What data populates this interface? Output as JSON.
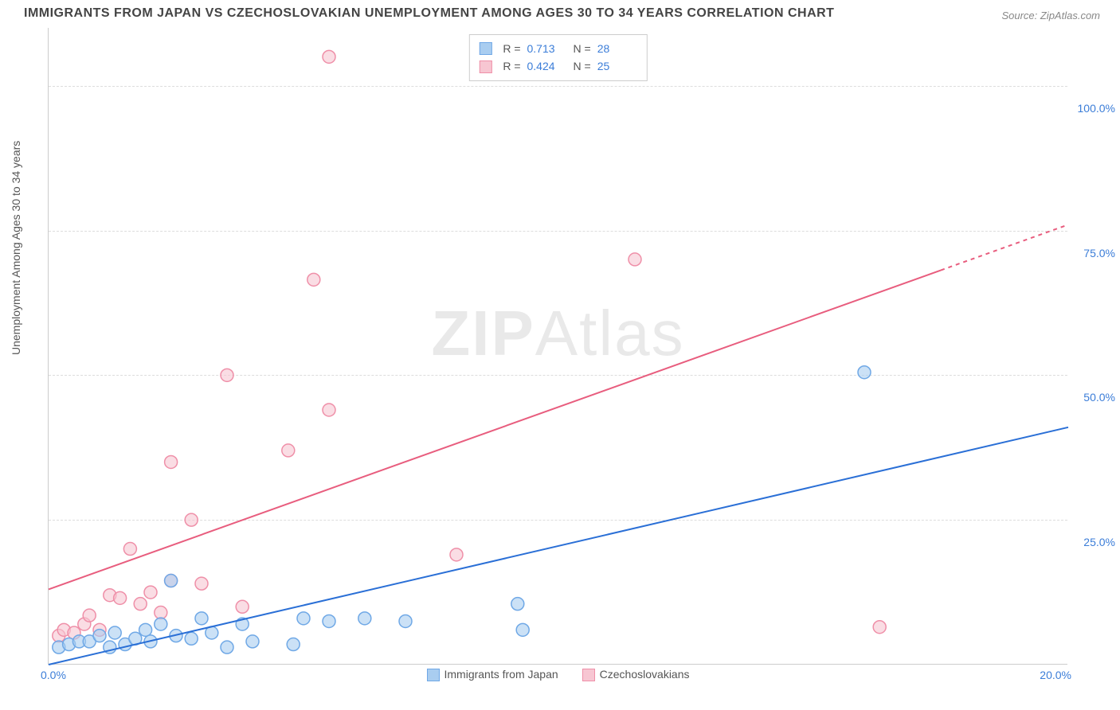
{
  "title": "IMMIGRANTS FROM JAPAN VS CZECHOSLOVAKIAN UNEMPLOYMENT AMONG AGES 30 TO 34 YEARS CORRELATION CHART",
  "source": "Source: ZipAtlas.com",
  "ylabel": "Unemployment Among Ages 30 to 34 years",
  "watermark_a": "ZIP",
  "watermark_b": "Atlas",
  "chart": {
    "type": "scatter",
    "xlim": [
      0,
      20
    ],
    "ylim": [
      0,
      110
    ],
    "xtick_labels": [
      "0.0%",
      "20.0%"
    ],
    "ytick_positions": [
      25,
      50,
      75,
      100
    ],
    "ytick_labels": [
      "25.0%",
      "50.0%",
      "75.0%",
      "100.0%"
    ],
    "background_color": "#ffffff",
    "grid_color": "#dddddd",
    "marker_radius": 8,
    "marker_stroke_width": 1.5,
    "line_width": 2,
    "series": [
      {
        "name": "Immigrants from Japan",
        "color_fill": "#a9cdf0",
        "color_stroke": "#6fa8e6",
        "line_color": "#2a6fd6",
        "R": "0.713",
        "N": "28",
        "points": [
          [
            0.2,
            3.0
          ],
          [
            0.4,
            3.5
          ],
          [
            0.6,
            4.0
          ],
          [
            0.8,
            4.0
          ],
          [
            1.0,
            5.0
          ],
          [
            1.2,
            3.0
          ],
          [
            1.3,
            5.5
          ],
          [
            1.5,
            3.5
          ],
          [
            1.7,
            4.5
          ],
          [
            1.9,
            6.0
          ],
          [
            2.0,
            4.0
          ],
          [
            2.2,
            7.0
          ],
          [
            2.4,
            14.5
          ],
          [
            2.5,
            5.0
          ],
          [
            2.8,
            4.5
          ],
          [
            3.0,
            8.0
          ],
          [
            3.2,
            5.5
          ],
          [
            3.5,
            3.0
          ],
          [
            3.8,
            7.0
          ],
          [
            4.0,
            4.0
          ],
          [
            4.8,
            3.5
          ],
          [
            5.0,
            8.0
          ],
          [
            5.5,
            7.5
          ],
          [
            6.2,
            8.0
          ],
          [
            7.0,
            7.5
          ],
          [
            9.2,
            10.5
          ],
          [
            9.3,
            6.0
          ],
          [
            16.0,
            50.5
          ]
        ],
        "trend": {
          "x1": 0,
          "y1": 0,
          "x2": 20,
          "y2": 41,
          "dash_from_x": null
        }
      },
      {
        "name": "Czechoslovakians",
        "color_fill": "#f7c6d2",
        "color_stroke": "#ef8fa8",
        "line_color": "#e85d7e",
        "R": "0.424",
        "N": "25",
        "points": [
          [
            0.2,
            5.0
          ],
          [
            0.3,
            6.0
          ],
          [
            0.5,
            5.5
          ],
          [
            0.7,
            7.0
          ],
          [
            0.8,
            8.5
          ],
          [
            1.0,
            6.0
          ],
          [
            1.2,
            12.0
          ],
          [
            1.4,
            11.5
          ],
          [
            1.6,
            20.0
          ],
          [
            1.8,
            10.5
          ],
          [
            2.0,
            12.5
          ],
          [
            2.2,
            9.0
          ],
          [
            2.4,
            14.5
          ],
          [
            2.4,
            35.0
          ],
          [
            2.8,
            25.0
          ],
          [
            3.0,
            14.0
          ],
          [
            3.5,
            50.0
          ],
          [
            3.8,
            10.0
          ],
          [
            4.7,
            37.0
          ],
          [
            5.2,
            66.5
          ],
          [
            5.5,
            44.0
          ],
          [
            5.5,
            105.0
          ],
          [
            8.0,
            19.0
          ],
          [
            11.5,
            70.0
          ],
          [
            16.3,
            6.5
          ]
        ],
        "trend": {
          "x1": 0,
          "y1": 13,
          "x2": 20,
          "y2": 76,
          "dash_from_x": 17.5
        }
      }
    ]
  },
  "legend_bottom": {
    "series1_label": "Immigrants from Japan",
    "series2_label": "Czechoslovakians"
  },
  "legend_top": {
    "r_label": "R  =",
    "n_label": "N  ="
  }
}
